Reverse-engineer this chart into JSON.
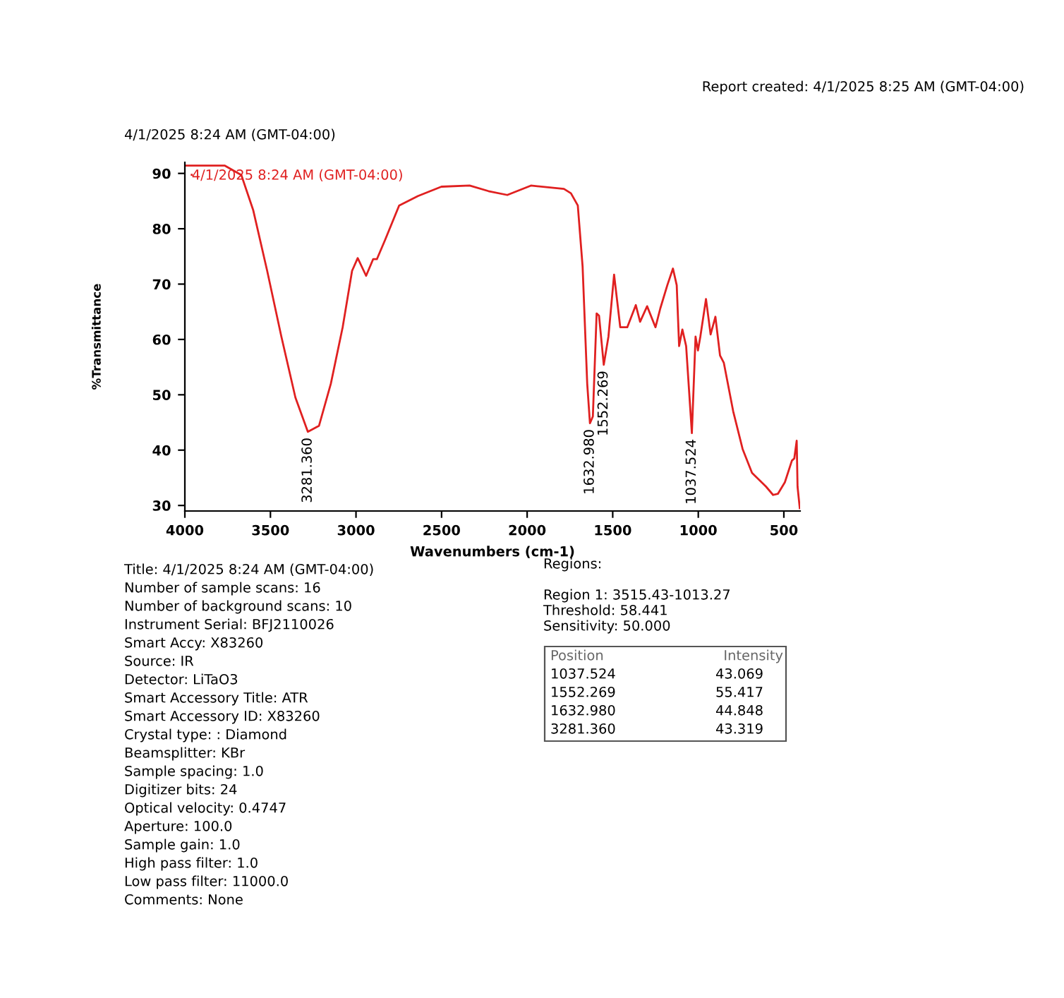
{
  "chart_data": {
    "type": "line",
    "title": "4/1/2025 8:24 AM (GMT-04:00)",
    "subtitle": "Report created: 4/1/2025 8:25 AM (GMT-04:00)",
    "xlabel": "Wavenumbers (cm-1)",
    "ylabel": "%Transmittance",
    "xlim": [
      4000,
      405
    ],
    "ylim": [
      29,
      92
    ],
    "xticks": [
      4000,
      3500,
      3000,
      2500,
      2000,
      1500,
      1000,
      500
    ],
    "yticks": [
      30,
      40,
      50,
      60,
      70,
      80,
      90
    ],
    "grid": false,
    "legend": "top left",
    "marker": "none",
    "line_style": "solid",
    "series": [
      {
        "name": "4/1/2025 8:24 AM (GMT-04:00)",
        "color": "#e02020",
        "x": [
          4000,
          3766,
          3670,
          3601,
          3519,
          3436,
          3354,
          3281.36,
          3216,
          3147,
          3078,
          3023,
          2990,
          2941,
          2900,
          2878,
          2831,
          2748,
          2638,
          2501,
          2336,
          2226,
          2116,
          1978,
          1785,
          1744,
          1704,
          1676,
          1649,
          1632.98,
          1616,
          1594,
          1580,
          1552.269,
          1525,
          1492,
          1456,
          1415,
          1365,
          1340,
          1299,
          1250,
          1222,
          1181,
          1148,
          1126,
          1112,
          1093,
          1071,
          1037.524,
          1016,
          1002,
          988,
          955,
          928,
          900,
          873,
          851,
          796,
          741,
          686,
          604,
          563,
          535,
          494,
          453,
          439,
          425,
          420,
          407
        ],
        "values": [
          91.4,
          91.4,
          89.7,
          83.4,
          72.4,
          60.5,
          49.5,
          43.319,
          44.4,
          52.0,
          62.2,
          72.4,
          74.7,
          71.5,
          74.5,
          74.5,
          77.9,
          84.2,
          85.9,
          87.6,
          87.8,
          86.8,
          86.1,
          87.8,
          87.2,
          86.4,
          84.2,
          73.2,
          52.0,
          44.848,
          46.1,
          64.7,
          64.3,
          55.417,
          60.5,
          71.7,
          62.2,
          62.2,
          66.2,
          63.2,
          66.0,
          62.2,
          65.6,
          69.8,
          72.8,
          69.8,
          58.8,
          61.8,
          58.8,
          43.069,
          60.5,
          58.0,
          60.5,
          67.3,
          60.9,
          64.1,
          57.1,
          55.8,
          47.0,
          40.2,
          35.9,
          33.4,
          31.9,
          32.1,
          34.2,
          38.1,
          38.5,
          41.7,
          33.4,
          29.5
        ]
      }
    ],
    "annotations": [
      {
        "text": "3281.360",
        "x": 3281.36,
        "y": 43.319
      },
      {
        "text": "1632.980",
        "x": 1632.98,
        "y": 44.848
      },
      {
        "text": "1552.269",
        "x": 1552.269,
        "y": 55.417
      },
      {
        "text": "1037.524",
        "x": 1037.524,
        "y": 43.069
      },
      "Title: 4/1/2025 8:24 AM (GMT-04:00)",
      "Number of sample scans: 16",
      "Number of background scans: 10",
      "Instrument Serial: BFJ2110026",
      "Smart Accy: X83260",
      "Source: IR",
      "Detector: LiTaO3",
      "Smart Accessory Title: ATR",
      "Smart Accessory ID: X83260",
      "Crystal type: : Diamond",
      "Beamsplitter: KBr",
      "Sample spacing: 1.0",
      "Digitizer bits: 24",
      "Optical velocity: 0.4747",
      "Aperture: 100.0",
      "Sample gain: 1.0",
      "High pass filter: 1.0",
      "Low pass filter: 11000.0",
      "Comments: None",
      "Regions:",
      "Region 1: 3515.43-1013.27",
      "Threshold: 58.441",
      "Sensitivity: 50.000",
      "Position",
      "Intensity",
      "1037.524",
      "43.069",
      "1552.269",
      "55.417",
      "1632.980",
      "44.848",
      "3281.360",
      "43.319"
    ]
  }
}
